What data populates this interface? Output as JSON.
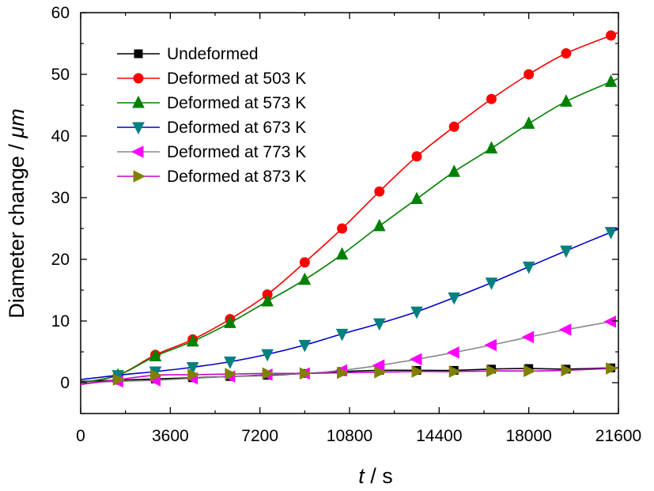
{
  "chart_data": {
    "type": "line",
    "title": "",
    "xlabel": {
      "var": "t",
      "unit": " / s"
    },
    "ylabel": {
      "main": "Diameter change / ",
      "unit": "μm"
    },
    "xlim": [
      0,
      21600
    ],
    "ylim": [
      -5,
      60
    ],
    "xticks": [
      0,
      3600,
      7200,
      10800,
      14400,
      18000,
      21600
    ],
    "yticks": [
      0,
      10,
      20,
      30,
      40,
      50,
      60
    ],
    "legend_position": "top-left",
    "grid": false,
    "series": [
      {
        "name": "Undeformed",
        "color": "#000000",
        "marker": "square",
        "x": [
          0,
          1500,
          3000,
          4500,
          6000,
          7500,
          9000,
          10500,
          12000,
          13500,
          15000,
          16500,
          18000,
          19500,
          21300
        ],
        "y": [
          0.2,
          0.4,
          0.6,
          0.8,
          1.0,
          1.2,
          1.5,
          1.8,
          2.0,
          2.0,
          2.0,
          2.2,
          2.3,
          2.2,
          2.4
        ]
      },
      {
        "name": "Deformed at 503 K",
        "color": "#ff0000",
        "marker": "circle",
        "x": [
          0,
          1500,
          3000,
          4500,
          6000,
          7500,
          9000,
          10500,
          12000,
          13500,
          15000,
          16500,
          18000,
          19500,
          21300
        ],
        "y": [
          0.0,
          1.2,
          4.5,
          7.0,
          10.3,
          14.3,
          19.5,
          25.0,
          31.0,
          36.7,
          41.5,
          46.0,
          50.0,
          53.4,
          56.3
        ]
      },
      {
        "name": "Deformed at 573 K",
        "color": "#008000",
        "marker": "triangle-up",
        "x": [
          0,
          1500,
          3000,
          4500,
          6000,
          7500,
          9000,
          10500,
          12000,
          13500,
          15000,
          16500,
          18000,
          19500,
          21300
        ],
        "y": [
          0.0,
          1.2,
          4.3,
          6.7,
          9.7,
          13.2,
          16.7,
          20.8,
          25.4,
          29.8,
          34.2,
          38.0,
          42.0,
          45.6,
          48.8
        ]
      },
      {
        "name": "Deformed at 673 K",
        "color": "#0000cc",
        "marker": "triangle-down",
        "x": [
          0,
          1500,
          3000,
          4500,
          6000,
          7500,
          9000,
          10500,
          12000,
          13500,
          15000,
          16500,
          18000,
          19500,
          21300
        ],
        "y": [
          0.5,
          1.2,
          1.8,
          2.5,
          3.4,
          4.6,
          6.1,
          7.9,
          9.6,
          11.5,
          13.8,
          16.2,
          18.8,
          21.4,
          24.4
        ]
      },
      {
        "name": "Deformed at 773 K",
        "color": "#888888",
        "marker": "triangle-left",
        "x": [
          0,
          1500,
          3000,
          4500,
          6000,
          7500,
          9000,
          10500,
          12000,
          13500,
          15000,
          16500,
          18000,
          19500,
          21300
        ],
        "y": [
          0.0,
          0.2,
          0.4,
          0.7,
          1.0,
          1.3,
          1.5,
          2.0,
          2.8,
          3.8,
          4.9,
          6.1,
          7.4,
          8.6,
          9.9
        ]
      },
      {
        "name": "Deformed at 873 K",
        "color": "#cc00cc",
        "marker": "triangle-right",
        "x": [
          0,
          1500,
          3000,
          4500,
          6000,
          7500,
          9000,
          10500,
          12000,
          13500,
          15000,
          16500,
          18000,
          19500,
          21300
        ],
        "y": [
          -0.3,
          0.5,
          1.2,
          1.3,
          1.4,
          1.5,
          1.5,
          1.6,
          1.7,
          1.8,
          1.8,
          1.9,
          1.9,
          2.0,
          2.3
        ]
      }
    ]
  },
  "colors": {
    "marker_873_fill": "#808000",
    "marker_773_fill": "#ff00ff",
    "marker_673_fill": "#008080"
  }
}
